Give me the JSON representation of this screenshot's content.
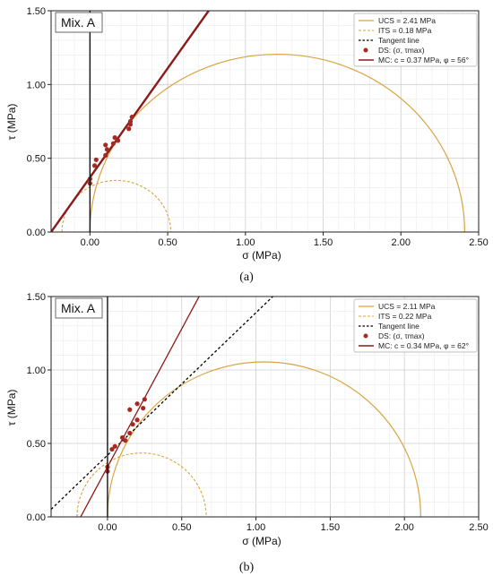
{
  "colors": {
    "circle": "#d9a441",
    "points": "#a52a22",
    "mc_line": "#8b1a1a",
    "tangent": "#000000",
    "grid": "#cfcfcf",
    "grid_minor": "#ebebeb"
  },
  "chart_data": [
    {
      "type": "scatter",
      "panel_caption": "(a)",
      "annotation": "Mix. A",
      "xlabel": "σ (MPa)",
      "ylabel": "τ (MPa)",
      "xlim": [
        -0.25,
        2.5
      ],
      "ylim": [
        0.0,
        1.5
      ],
      "xticks": [
        "0.00",
        "0.50",
        "1.00",
        "1.50",
        "2.00",
        "2.50"
      ],
      "yticks": [
        "0.00",
        "0.50",
        "1.00",
        "1.50"
      ],
      "grid": true,
      "legend_position": "top-right",
      "legend": [
        "UCS = 2.41 MPa",
        "ITS = 0.18 MPa",
        "Tangent line",
        "DS: (σ, τmax)",
        "MC: c = 0.37 MPa, φ = 56°"
      ],
      "ucs_circle": {
        "center": 1.205,
        "radius": 1.205
      },
      "its_circle": {
        "center": 0.17,
        "radius": 0.35
      },
      "tangent_line": {
        "c": 0.37,
        "slope": 1.48,
        "x_range": [
          -0.25,
          2.5
        ]
      },
      "mc_line": {
        "c": 0.37,
        "slope": 1.48,
        "x_range": [
          -0.25,
          2.5
        ]
      },
      "ds_points": [
        [
          0.0,
          0.33
        ],
        [
          0.0,
          0.36
        ],
        [
          0.03,
          0.45
        ],
        [
          0.04,
          0.49
        ],
        [
          0.1,
          0.52
        ],
        [
          0.11,
          0.56
        ],
        [
          0.1,
          0.59
        ],
        [
          0.15,
          0.6
        ],
        [
          0.16,
          0.64
        ],
        [
          0.18,
          0.62
        ],
        [
          0.25,
          0.7
        ],
        [
          0.26,
          0.73
        ],
        [
          0.26,
          0.75
        ],
        [
          0.27,
          0.78
        ]
      ]
    },
    {
      "type": "scatter",
      "panel_caption": "(b)",
      "annotation": "Mix. A",
      "xlabel": "σ (MPa)",
      "ylabel": "τ (MPa)",
      "xlim": [
        -0.38,
        2.5
      ],
      "ylim": [
        0.0,
        1.5
      ],
      "xticks": [
        "0.00",
        "0.50",
        "1.00",
        "1.50",
        "2.00",
        "2.50"
      ],
      "yticks": [
        "0.00",
        "0.50",
        "1.00",
        "1.50"
      ],
      "grid": true,
      "legend_position": "top-right",
      "legend": [
        "UCS = 2.11 MPa",
        "ITS = 0.22 MPa",
        "Tangent line",
        "DS: (σ, τmax)",
        "MC: c = 0.34 MPa, φ = 62°"
      ],
      "ucs_circle": {
        "center": 1.055,
        "radius": 1.055
      },
      "its_circle": {
        "center": 0.23,
        "radius": 0.435
      },
      "tangent_line": {
        "c": 0.42,
        "slope": 0.97,
        "x_range": [
          -0.38,
          2.5
        ]
      },
      "mc_line": {
        "c": 0.34,
        "slope": 1.88,
        "x_range": [
          -0.38,
          2.5
        ]
      },
      "ds_points": [
        [
          0.0,
          0.31
        ],
        [
          0.0,
          0.34
        ],
        [
          0.03,
          0.46
        ],
        [
          0.05,
          0.48
        ],
        [
          0.1,
          0.54
        ],
        [
          0.12,
          0.52
        ],
        [
          0.15,
          0.57
        ],
        [
          0.15,
          0.73
        ],
        [
          0.17,
          0.63
        ],
        [
          0.2,
          0.66
        ],
        [
          0.2,
          0.77
        ],
        [
          0.24,
          0.74
        ],
        [
          0.25,
          0.8
        ]
      ]
    }
  ]
}
